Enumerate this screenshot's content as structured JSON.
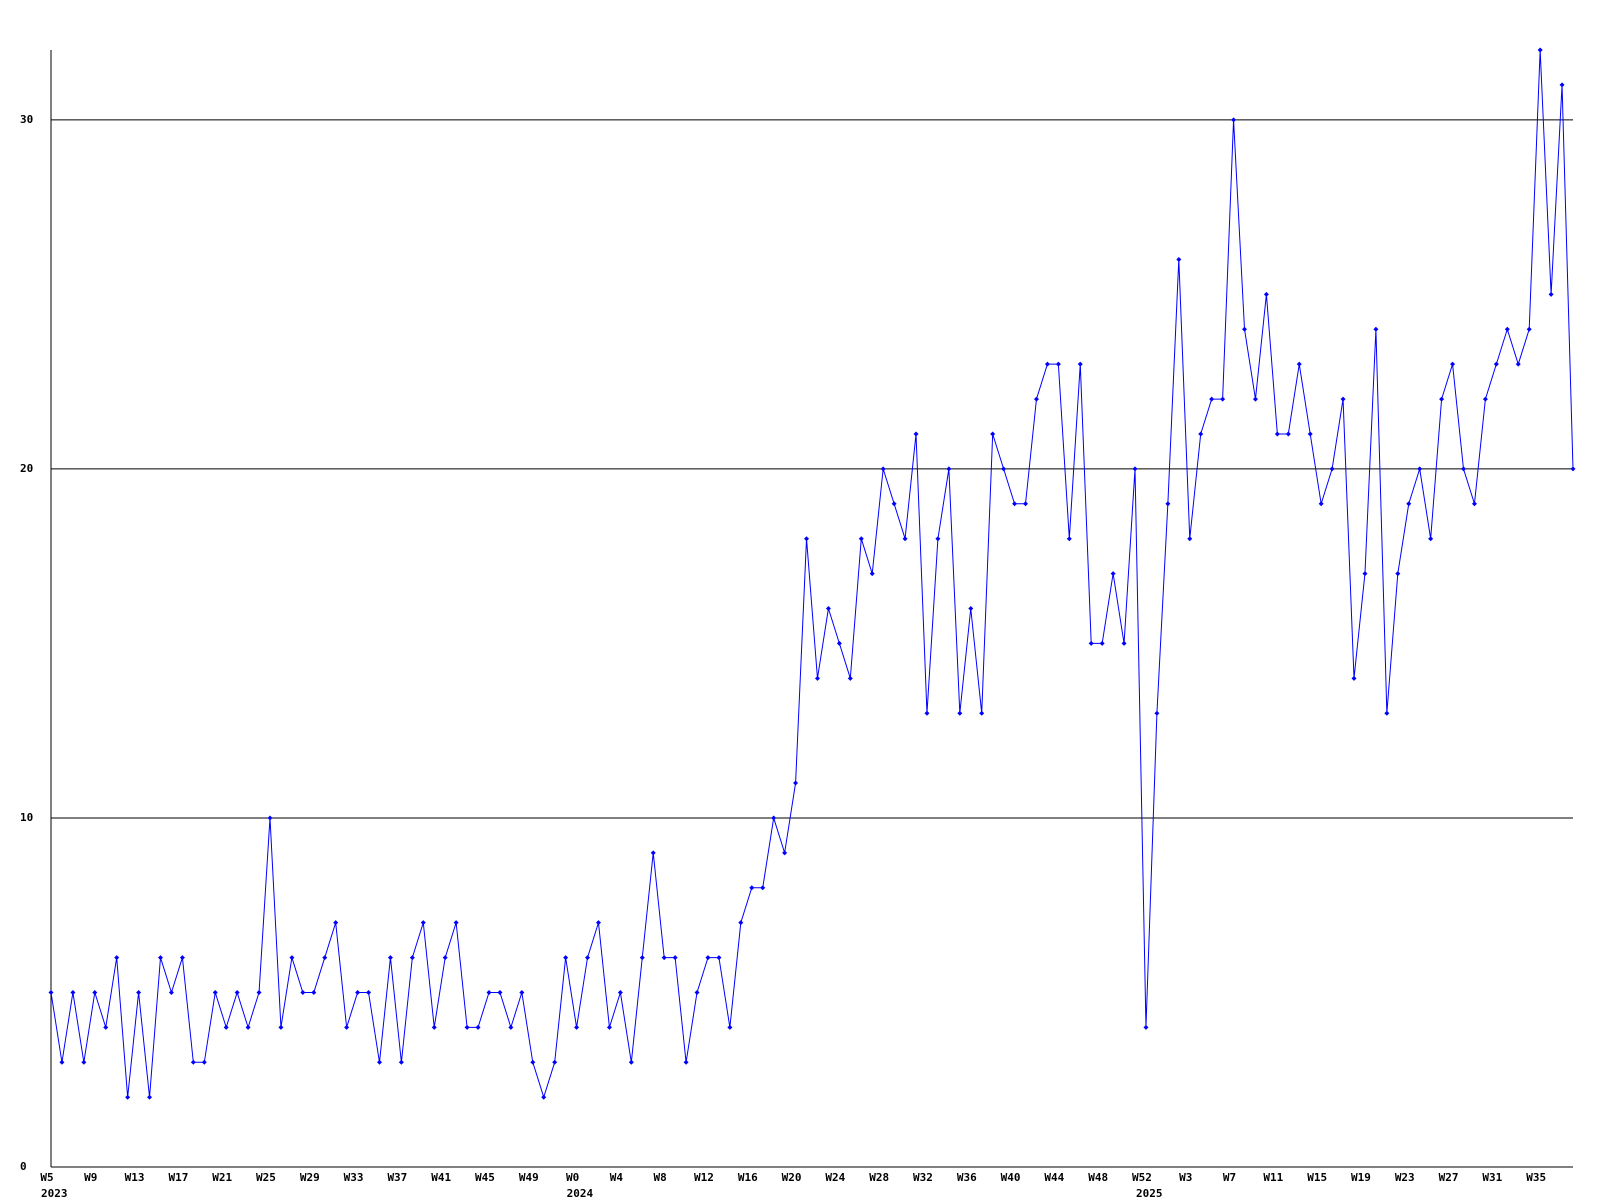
{
  "chart_data": {
    "type": "line",
    "categories": [
      "W5",
      null,
      null,
      null,
      "W9",
      null,
      null,
      null,
      "W13",
      null,
      null,
      null,
      "W17",
      null,
      null,
      null,
      "W21",
      null,
      null,
      null,
      "W25",
      null,
      null,
      null,
      "W29",
      null,
      null,
      null,
      "W33",
      null,
      null,
      null,
      "W37",
      null,
      null,
      null,
      "W41",
      null,
      null,
      null,
      "W45",
      null,
      null,
      null,
      "W49",
      null,
      null,
      null,
      "W0",
      null,
      null,
      null,
      "W4",
      null,
      null,
      null,
      "W8",
      null,
      null,
      null,
      "W12",
      null,
      null,
      null,
      "W16",
      null,
      null,
      null,
      "W20",
      null,
      null,
      null,
      "W24",
      null,
      null,
      null,
      "W28",
      null,
      null,
      null,
      "W32",
      null,
      null,
      null,
      "W36",
      null,
      null,
      null,
      "W40",
      null,
      null,
      null,
      "W44",
      null,
      null,
      null,
      "W48",
      null,
      null,
      null,
      "W52",
      null,
      null,
      null,
      "W3",
      null,
      null,
      null,
      "W7",
      null,
      null,
      null,
      "W11",
      null,
      null,
      null,
      "W15",
      null,
      null,
      null,
      "W19",
      null,
      null,
      null,
      "W23",
      null,
      null,
      null,
      "W27",
      null,
      null,
      null,
      "W31",
      null,
      null,
      null,
      "W35",
      null,
      null,
      null
    ],
    "year_labels": [
      "2023",
      null,
      null,
      null,
      null,
      null,
      null,
      null,
      null,
      null,
      null,
      null,
      null,
      null,
      null,
      null,
      null,
      null,
      null,
      null,
      null,
      null,
      null,
      null,
      null,
      null,
      null,
      null,
      null,
      null,
      null,
      null,
      null,
      null,
      null,
      null,
      null,
      null,
      null,
      null,
      null,
      null,
      null,
      null,
      null,
      null,
      null,
      null,
      "2024",
      null,
      null,
      null,
      null,
      null,
      null,
      null,
      null,
      null,
      null,
      null,
      null,
      null,
      null,
      null,
      null,
      null,
      null,
      null,
      null,
      null,
      null,
      null,
      null,
      null,
      null,
      null,
      null,
      null,
      null,
      null,
      null,
      null,
      null,
      null,
      null,
      null,
      null,
      null,
      null,
      null,
      null,
      null,
      null,
      null,
      null,
      null,
      null,
      null,
      null,
      null,
      "2025",
      null,
      null,
      null,
      null,
      null,
      null,
      null,
      null,
      null,
      null,
      null,
      null,
      null,
      null,
      null,
      null,
      null,
      null,
      null,
      null,
      null,
      null,
      null,
      null,
      null,
      null,
      null,
      null,
      null,
      null,
      null,
      null,
      null,
      null,
      null,
      null,
      null,
      null,
      null
    ],
    "values": [
      5,
      3,
      5,
      3,
      5,
      4,
      6,
      2,
      5,
      2,
      6,
      5,
      6,
      3,
      3,
      5,
      4,
      5,
      4,
      5,
      10,
      4,
      6,
      5,
      5,
      6,
      7,
      4,
      5,
      5,
      3,
      6,
      3,
      6,
      7,
      4,
      6,
      7,
      4,
      4,
      5,
      5,
      4,
      5,
      3,
      2,
      3,
      6,
      4,
      6,
      7,
      4,
      5,
      3,
      6,
      9,
      6,
      6,
      3,
      5,
      6,
      6,
      4,
      7,
      8,
      8,
      10,
      9,
      11,
      18,
      14,
      16,
      15,
      14,
      18,
      17,
      20,
      19,
      18,
      21,
      13,
      18,
      20,
      13,
      16,
      13,
      21,
      20,
      19,
      19,
      22,
      23,
      23,
      18,
      23,
      15,
      15,
      17,
      15,
      20,
      4,
      13,
      19,
      26,
      18,
      21,
      22,
      22,
      30,
      24,
      22,
      25,
      21,
      21,
      23,
      21,
      19,
      20,
      22,
      14,
      17,
      24,
      13,
      17,
      19,
      20,
      18,
      22,
      23,
      20,
      19,
      22,
      23,
      24,
      23,
      24,
      32,
      25,
      31,
      20
    ],
    "color": "#0000ff",
    "ylim": [
      0,
      32
    ],
    "yticks": [
      0,
      10,
      20,
      30
    ],
    "grid": true
  }
}
